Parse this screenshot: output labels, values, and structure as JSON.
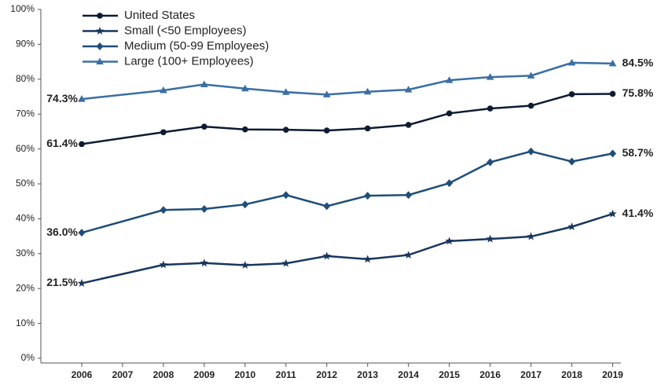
{
  "chart_data": {
    "type": "line",
    "x": [
      2006,
      2008,
      2009,
      2010,
      2011,
      2012,
      2013,
      2014,
      2015,
      2016,
      2017,
      2018,
      2019
    ],
    "xlim": [
      2005,
      2019.2
    ],
    "xticks": [
      2006,
      2007,
      2008,
      2009,
      2010,
      2011,
      2012,
      2013,
      2014,
      2015,
      2016,
      2017,
      2018,
      2019
    ],
    "ylim": [
      0,
      100
    ],
    "yticks": [
      {
        "value": 0,
        "label": "0%"
      },
      {
        "value": 10,
        "label": "10%"
      },
      {
        "value": 20,
        "label": "20%"
      },
      {
        "value": 30,
        "label": "30%"
      },
      {
        "value": 40,
        "label": "40%"
      },
      {
        "value": 50,
        "label": "50%"
      },
      {
        "value": 60,
        "label": "60%"
      },
      {
        "value": 70,
        "label": "70%"
      },
      {
        "value": 80,
        "label": "80%"
      },
      {
        "value": 90,
        "label": "90%"
      },
      {
        "value": 100,
        "label": "100%"
      }
    ],
    "legend": "upper left",
    "series": [
      {
        "name": "United States",
        "color": "#0d1b33",
        "marker": "circle",
        "values": [
          61.4,
          64.8,
          66.4,
          65.6,
          65.5,
          65.3,
          65.9,
          66.9,
          70.2,
          71.6,
          72.4,
          75.7,
          75.8
        ],
        "value_labels": [
          "61.4%",
          null,
          null,
          null,
          null,
          null,
          null,
          null,
          null,
          null,
          null,
          null,
          "75.8%"
        ]
      },
      {
        "name": "Small (<50 Employees)",
        "color": "#18365f",
        "marker": "star",
        "values": [
          21.5,
          26.8,
          27.3,
          26.7,
          27.2,
          29.3,
          28.4,
          29.6,
          33.6,
          34.2,
          34.9,
          37.7,
          41.4
        ],
        "value_labels": [
          "21.5%",
          null,
          null,
          null,
          null,
          null,
          null,
          null,
          null,
          null,
          null,
          null,
          "41.4%"
        ]
      },
      {
        "name": "Medium (50-99 Employees)",
        "color": "#1f4e79",
        "marker": "diamond",
        "values": [
          36.0,
          42.5,
          42.8,
          44.1,
          46.8,
          43.6,
          46.6,
          46.8,
          50.2,
          56.2,
          59.3,
          56.4,
          58.7
        ],
        "value_labels": [
          "36.0%",
          null,
          null,
          null,
          null,
          null,
          null,
          null,
          null,
          null,
          null,
          null,
          "58.7%"
        ]
      },
      {
        "name": "Large (100+ Employees)",
        "color": "#3a6ea5",
        "marker": "triangle",
        "values": [
          74.3,
          76.8,
          78.5,
          77.3,
          76.3,
          75.6,
          76.4,
          77.0,
          79.7,
          80.6,
          81.0,
          84.7,
          84.5
        ],
        "value_labels": [
          "74.3%",
          null,
          null,
          null,
          null,
          null,
          null,
          null,
          null,
          null,
          null,
          null,
          "84.5%"
        ]
      }
    ]
  }
}
